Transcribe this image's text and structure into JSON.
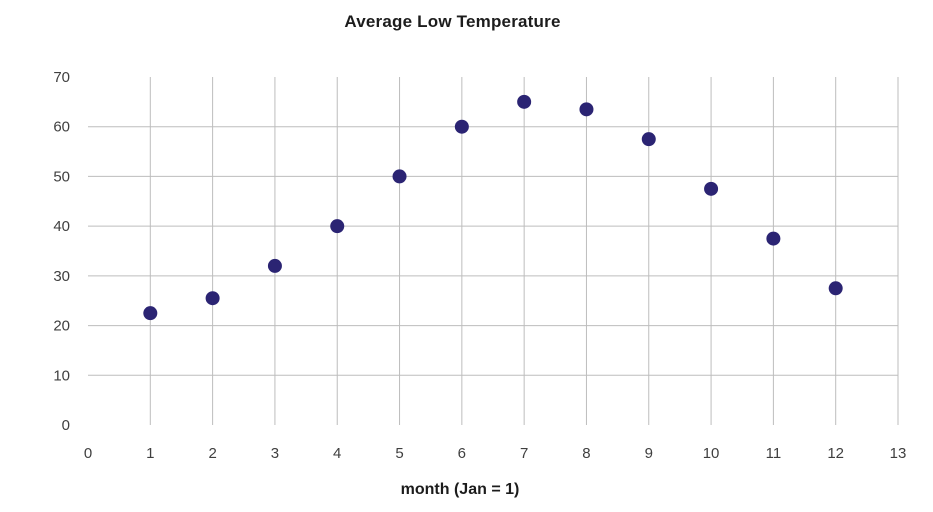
{
  "page": {
    "background_color": "#ffffff"
  },
  "chart_data": {
    "type": "scatter",
    "title": "Average Low Temperature",
    "xlabel": "month (Jan = 1)",
    "ylabel": "",
    "x": [
      1,
      2,
      3,
      4,
      5,
      6,
      7,
      8,
      9,
      10,
      11,
      12
    ],
    "y": [
      22.5,
      25.5,
      32,
      40,
      50,
      60,
      65,
      63.5,
      57.5,
      47.5,
      37.5,
      27.5
    ],
    "xlim": [
      0,
      13
    ],
    "ylim": [
      0,
      70
    ],
    "x_ticks": [
      0,
      1,
      2,
      3,
      4,
      5,
      6,
      7,
      8,
      9,
      10,
      11,
      12,
      13
    ],
    "y_ticks": [
      0,
      10,
      20,
      30,
      40,
      50,
      60,
      70
    ],
    "grid": {
      "vertical_at": [
        1,
        2,
        3,
        4,
        5,
        6,
        7,
        8,
        9,
        10,
        11,
        12,
        13
      ],
      "horizontal_at": [
        10,
        20,
        30,
        40,
        50,
        60
      ],
      "color": "#bdbdbd"
    },
    "legend_position": "none",
    "point_color": "#2b2473",
    "point_radius": 7,
    "tick_text_color": "#3f3f3f",
    "title_color": "#1c1c1c"
  }
}
